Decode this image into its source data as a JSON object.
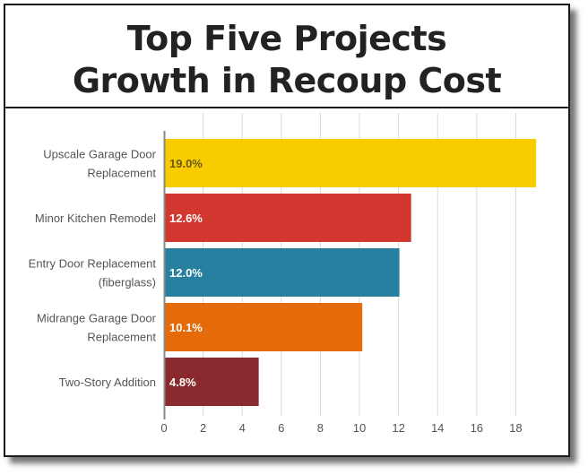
{
  "title_line1": "Top Five Projects",
  "title_line2": "Growth in Recoup Cost",
  "chart_data": {
    "type": "bar",
    "orientation": "horizontal",
    "title": "Top Five Projects Growth in Recoup Cost",
    "categories": [
      [
        "Upscale Garage Door",
        "Replacement"
      ],
      [
        "Minor Kitchen Remodel"
      ],
      [
        "Entry Door Replacement",
        "(fiberglass)"
      ],
      [
        "Midrange Garage Door",
        "Replacement"
      ],
      [
        "Two-Story Addition"
      ]
    ],
    "values": [
      19.0,
      12.6,
      12.0,
      10.1,
      4.8
    ],
    "value_labels": [
      "19.0%",
      "12.6%",
      "12.0%",
      "10.1%",
      "4.8%"
    ],
    "colors": [
      "#f9cc00",
      "#d2382f",
      "#2880a0",
      "#e56b0a",
      "#8a2a2e"
    ],
    "label_colors": [
      "#6b5a10",
      "#ffffff",
      "#ffffff",
      "#ffffff",
      "#ffffff"
    ],
    "xticks": [
      0,
      2,
      4,
      6,
      8,
      10,
      12,
      14,
      16,
      18
    ],
    "xtick_labels": [
      "0",
      "2",
      "4",
      "6",
      "8",
      "10",
      "12",
      "14",
      "16",
      "18"
    ],
    "xlim": [
      0,
      19.0
    ],
    "grid": true,
    "xlabel": "",
    "ylabel": ""
  }
}
